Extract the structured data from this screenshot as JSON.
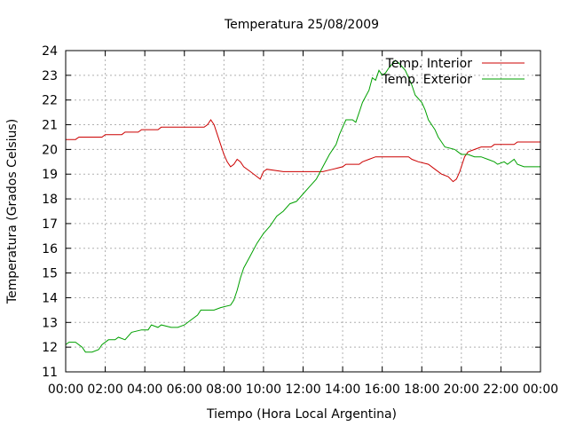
{
  "chart_data": {
    "type": "line",
    "title": "Temperatura 25/08/2009",
    "xlabel": "Tiempo (Hora Local Argentina)",
    "ylabel": "Temperatura (Grados Celsius)",
    "xlim": [
      "00:00",
      "24:00"
    ],
    "ylim": [
      11,
      24
    ],
    "grid": true,
    "legend_position": "top-right",
    "x_ticks": [
      "00:00",
      "02:00",
      "04:00",
      "06:00",
      "08:00",
      "10:00",
      "12:00",
      "14:00",
      "16:00",
      "18:00",
      "20:00",
      "22:00",
      "00:00"
    ],
    "y_ticks": [
      "11",
      "12",
      "13",
      "14",
      "15",
      "16",
      "17",
      "18",
      "19",
      "20",
      "21",
      "22",
      "23",
      "24"
    ],
    "series": [
      {
        "name": "Temp. Interior",
        "color": "#cc0000",
        "points": [
          [
            "00:00",
            20.4
          ],
          [
            "00:30",
            20.4
          ],
          [
            "00:40",
            20.5
          ],
          [
            "01:50",
            20.5
          ],
          [
            "02:00",
            20.6
          ],
          [
            "02:50",
            20.6
          ],
          [
            "03:00",
            20.7
          ],
          [
            "03:40",
            20.7
          ],
          [
            "03:50",
            20.8
          ],
          [
            "04:40",
            20.8
          ],
          [
            "04:50",
            20.9
          ],
          [
            "05:50",
            20.9
          ],
          [
            "07:00",
            20.9
          ],
          [
            "07:10",
            21.0
          ],
          [
            "07:20",
            21.2
          ],
          [
            "07:30",
            21.0
          ],
          [
            "07:40",
            20.6
          ],
          [
            "07:50",
            20.2
          ],
          [
            "08:00",
            19.8
          ],
          [
            "08:10",
            19.5
          ],
          [
            "08:20",
            19.3
          ],
          [
            "08:30",
            19.4
          ],
          [
            "08:40",
            19.6
          ],
          [
            "08:50",
            19.5
          ],
          [
            "09:00",
            19.3
          ],
          [
            "09:20",
            19.1
          ],
          [
            "09:40",
            18.9
          ],
          [
            "09:50",
            18.8
          ],
          [
            "10:00",
            19.1
          ],
          [
            "10:10",
            19.2
          ],
          [
            "11:00",
            19.1
          ],
          [
            "12:00",
            19.1
          ],
          [
            "13:00",
            19.1
          ],
          [
            "13:30",
            19.2
          ],
          [
            "14:00",
            19.3
          ],
          [
            "14:10",
            19.4
          ],
          [
            "14:50",
            19.4
          ],
          [
            "15:00",
            19.5
          ],
          [
            "15:20",
            19.6
          ],
          [
            "15:40",
            19.7
          ],
          [
            "17:20",
            19.7
          ],
          [
            "17:30",
            19.6
          ],
          [
            "17:50",
            19.5
          ],
          [
            "18:20",
            19.4
          ],
          [
            "18:40",
            19.2
          ],
          [
            "19:00",
            19.0
          ],
          [
            "19:20",
            18.9
          ],
          [
            "19:35",
            18.7
          ],
          [
            "19:45",
            18.8
          ],
          [
            "19:55",
            19.1
          ],
          [
            "20:10",
            19.7
          ],
          [
            "20:20",
            19.9
          ],
          [
            "20:40",
            20.0
          ],
          [
            "21:00",
            20.1
          ],
          [
            "21:30",
            20.1
          ],
          [
            "21:40",
            20.2
          ],
          [
            "22:40",
            20.2
          ],
          [
            "22:50",
            20.3
          ],
          [
            "24:00",
            20.3
          ]
        ]
      },
      {
        "name": "Temp. Exterior",
        "color": "#00a000",
        "points": [
          [
            "00:00",
            12.1
          ],
          [
            "00:10",
            12.2
          ],
          [
            "00:30",
            12.2
          ],
          [
            "00:50",
            12.0
          ],
          [
            "01:00",
            11.8
          ],
          [
            "01:20",
            11.8
          ],
          [
            "01:40",
            11.9
          ],
          [
            "01:50",
            12.1
          ],
          [
            "02:10",
            12.3
          ],
          [
            "02:30",
            12.3
          ],
          [
            "02:40",
            12.4
          ],
          [
            "03:00",
            12.3
          ],
          [
            "03:20",
            12.6
          ],
          [
            "03:50",
            12.7
          ],
          [
            "04:10",
            12.7
          ],
          [
            "04:20",
            12.9
          ],
          [
            "04:40",
            12.8
          ],
          [
            "04:50",
            12.9
          ],
          [
            "05:20",
            12.8
          ],
          [
            "05:40",
            12.8
          ],
          [
            "06:00",
            12.9
          ],
          [
            "06:20",
            13.1
          ],
          [
            "06:40",
            13.3
          ],
          [
            "06:50",
            13.5
          ],
          [
            "07:30",
            13.5
          ],
          [
            "07:50",
            13.6
          ],
          [
            "08:20",
            13.7
          ],
          [
            "08:30",
            13.9
          ],
          [
            "08:40",
            14.3
          ],
          [
            "08:50",
            14.8
          ],
          [
            "09:00",
            15.2
          ],
          [
            "09:20",
            15.7
          ],
          [
            "09:40",
            16.2
          ],
          [
            "10:00",
            16.6
          ],
          [
            "10:20",
            16.9
          ],
          [
            "10:40",
            17.3
          ],
          [
            "11:00",
            17.5
          ],
          [
            "11:20",
            17.8
          ],
          [
            "11:40",
            17.9
          ],
          [
            "12:00",
            18.2
          ],
          [
            "12:20",
            18.5
          ],
          [
            "12:40",
            18.8
          ],
          [
            "13:00",
            19.3
          ],
          [
            "13:20",
            19.8
          ],
          [
            "13:40",
            20.2
          ],
          [
            "13:50",
            20.6
          ],
          [
            "14:00",
            20.9
          ],
          [
            "14:10",
            21.2
          ],
          [
            "14:30",
            21.2
          ],
          [
            "14:40",
            21.1
          ],
          [
            "14:50",
            21.5
          ],
          [
            "15:00",
            21.9
          ],
          [
            "15:20",
            22.4
          ],
          [
            "15:30",
            22.9
          ],
          [
            "15:40",
            22.8
          ],
          [
            "15:50",
            23.2
          ],
          [
            "16:00",
            23.0
          ],
          [
            "16:10",
            23.1
          ],
          [
            "16:20",
            23.3
          ],
          [
            "16:40",
            23.6
          ],
          [
            "16:50",
            23.5
          ],
          [
            "17:10",
            23.2
          ],
          [
            "17:20",
            22.9
          ],
          [
            "17:30",
            22.6
          ],
          [
            "17:40",
            22.2
          ],
          [
            "18:00",
            21.9
          ],
          [
            "18:10",
            21.6
          ],
          [
            "18:20",
            21.2
          ],
          [
            "18:40",
            20.8
          ],
          [
            "18:50",
            20.5
          ],
          [
            "19:10",
            20.1
          ],
          [
            "19:40",
            20.0
          ],
          [
            "19:50",
            19.9
          ],
          [
            "20:00",
            19.8
          ],
          [
            "20:20",
            19.8
          ],
          [
            "20:40",
            19.7
          ],
          [
            "21:00",
            19.7
          ],
          [
            "21:20",
            19.6
          ],
          [
            "21:40",
            19.5
          ],
          [
            "21:50",
            19.4
          ],
          [
            "22:10",
            19.5
          ],
          [
            "22:20",
            19.4
          ],
          [
            "22:40",
            19.6
          ],
          [
            "22:50",
            19.4
          ],
          [
            "23:10",
            19.3
          ],
          [
            "23:40",
            19.3
          ],
          [
            "24:00",
            19.3
          ]
        ]
      }
    ]
  }
}
